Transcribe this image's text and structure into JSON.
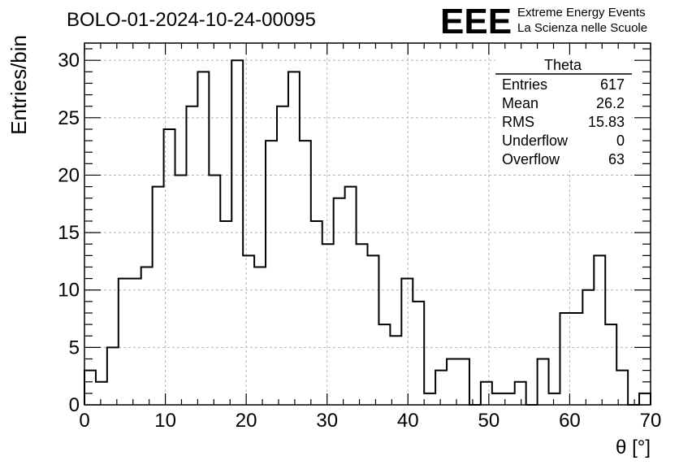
{
  "chart_data": {
    "type": "histogram",
    "title": "BOLO-01-2024-10-24-00095",
    "xlabel": "θ [°]",
    "ylabel": "Entries/bin",
    "xlim": [
      0,
      70
    ],
    "ylim": [
      0,
      31.5
    ],
    "x_ticks": [
      0,
      10,
      20,
      30,
      40,
      50,
      60,
      70
    ],
    "y_ticks": [
      0,
      5,
      10,
      15,
      20,
      25,
      30
    ],
    "grid": true,
    "bin_width": 1.4,
    "values": [
      3,
      2,
      5,
      11,
      11,
      12,
      19,
      24,
      20,
      26,
      29,
      20,
      16,
      30,
      13,
      12,
      23,
      26,
      29,
      23,
      16,
      14,
      18,
      19,
      14,
      13,
      7,
      6,
      11,
      9,
      1,
      3,
      4,
      4,
      0,
      2,
      1,
      1,
      2,
      0,
      4,
      1,
      8,
      8,
      10,
      13,
      7,
      3,
      0,
      1
    ],
    "line_color": "#000000",
    "stats_box": {
      "name": "Theta",
      "rows": [
        {
          "label": "Entries",
          "value": "617"
        },
        {
          "label": "Mean",
          "value": "26.2"
        },
        {
          "label": "RMS",
          "value": "15.83"
        },
        {
          "label": "Underflow",
          "value": "0"
        },
        {
          "label": "Overflow",
          "value": "63"
        }
      ]
    }
  },
  "logo": {
    "mark": "EEE",
    "line1": "Extreme Energy Events",
    "line2": "La Scienza nelle Scuole",
    "color": "#1a1aee"
  }
}
